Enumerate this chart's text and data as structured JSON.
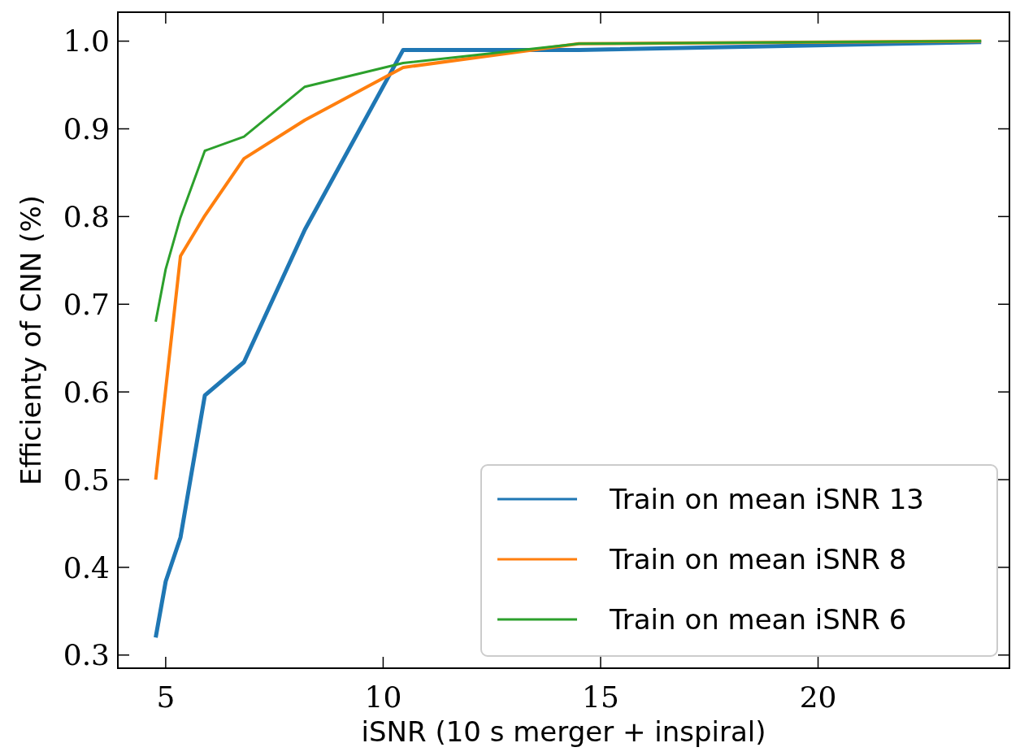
{
  "chart_data": {
    "type": "line",
    "xlabel": "iSNR (10 s merger + inspiral)",
    "ylabel": "Efficienty of CNN (%)",
    "xlim": [
      3.9,
      24.4
    ],
    "xticks": [
      5,
      10,
      15,
      20
    ],
    "ylim": [
      0.285,
      1.033
    ],
    "yticks": [
      {
        "value": 0.3,
        "label": "0.3"
      },
      {
        "value": 0.4,
        "label": "0.4"
      },
      {
        "value": 0.5,
        "label": "0.5"
      },
      {
        "value": 0.6,
        "label": "0.6"
      },
      {
        "value": 0.7,
        "label": "0.7"
      },
      {
        "value": 0.8,
        "label": "0.8"
      },
      {
        "value": 0.9,
        "label": "0.9"
      },
      {
        "value": 1.0,
        "label": "1.0"
      }
    ],
    "legend": "bottom right",
    "grid": false,
    "series": [
      {
        "name": "Train on mean iSNR 13",
        "color": "#1f77b4",
        "x": [
          4.77,
          5.0,
          5.34,
          5.9,
          6.8,
          8.2,
          10.46,
          14.5,
          23.75
        ],
        "values": [
          0.32,
          0.384,
          0.434,
          0.596,
          0.634,
          0.785,
          0.99,
          0.99,
          0.999
        ]
      },
      {
        "name": "Train on mean iSNR 8",
        "color": "#ff7f0e",
        "x": [
          4.77,
          5.34,
          5.9,
          6.8,
          8.2,
          10.46,
          14.5,
          23.75
        ],
        "values": [
          0.5,
          0.755,
          0.801,
          0.866,
          0.91,
          0.97,
          0.997,
          1.0
        ]
      },
      {
        "name": "Train on mean iSNR 6",
        "color": "#2ca02c",
        "x": [
          4.77,
          5.0,
          5.34,
          5.9,
          6.8,
          8.2,
          10.46,
          14.5,
          23.75
        ],
        "values": [
          0.68,
          0.74,
          0.799,
          0.875,
          0.891,
          0.948,
          0.975,
          0.997,
          1.0
        ]
      }
    ]
  }
}
